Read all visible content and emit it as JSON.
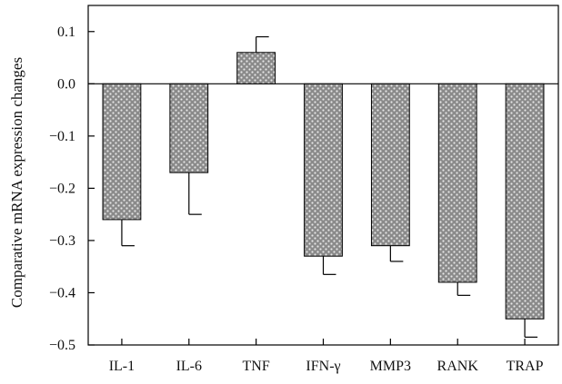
{
  "chart_data": {
    "type": "bar",
    "title": "",
    "xlabel": "",
    "ylabel": "Comparative mRNA expression changes",
    "categories": [
      "IL-1",
      "IL-6",
      "TNF",
      "IFN-γ",
      "MMP3",
      "RANK",
      "TRAP"
    ],
    "values": [
      -0.26,
      -0.17,
      0.06,
      -0.33,
      -0.31,
      -0.38,
      -0.45
    ],
    "error": [
      0.05,
      0.08,
      0.03,
      0.035,
      0.03,
      0.025,
      0.035
    ],
    "ylim": [
      -0.5,
      0.15
    ],
    "yticks": [
      -0.5,
      -0.4,
      -0.3,
      -0.2,
      -0.1,
      0.0,
      0.1
    ],
    "ytick_labels": [
      "−0.5",
      "−0.4",
      "−0.3",
      "−0.2",
      "−0.1",
      "0.0",
      "0.1"
    ],
    "grid": false,
    "bar_color": "#9a9a9a",
    "bar_pattern": "dotted"
  }
}
